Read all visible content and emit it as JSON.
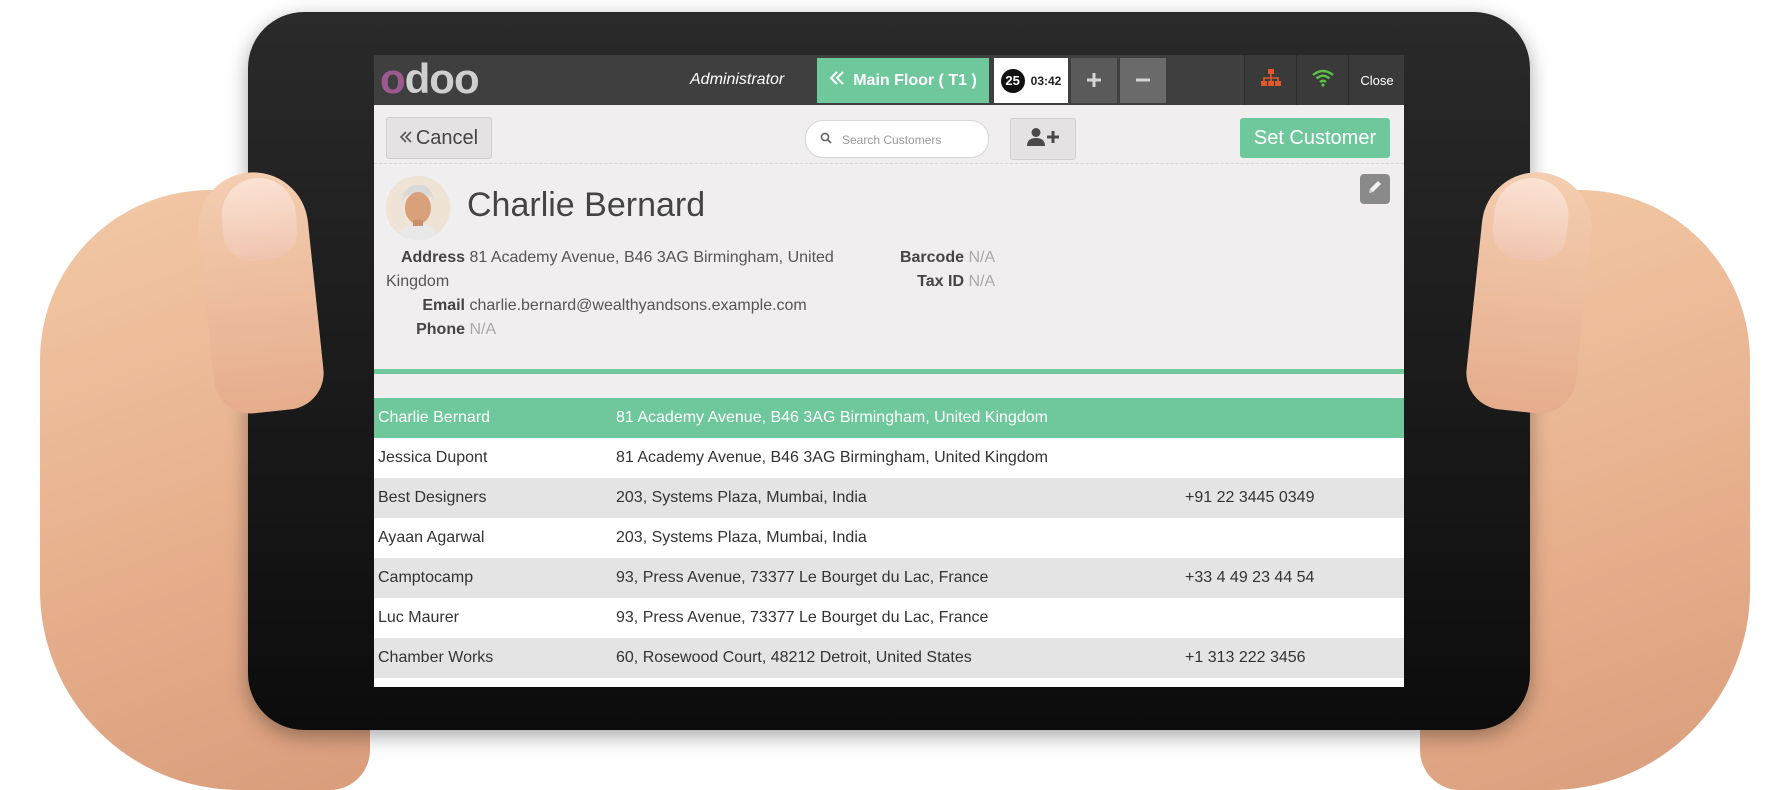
{
  "topbar": {
    "logo": "odoo",
    "user": "Administrator",
    "floor_button": "Main Floor ( T1 )",
    "order_number": "25",
    "order_time": "03:42",
    "plus_label": "+",
    "minus_label": "−",
    "close_label": "Close"
  },
  "controls": {
    "cancel_label": "Cancel",
    "search_placeholder": "Search Customers",
    "set_customer_label": "Set Customer"
  },
  "customer": {
    "name": "Charlie Bernard",
    "address_label": "Address",
    "address": "81 Academy Avenue, B46 3AG Birmingham, United Kingdom",
    "email_label": "Email",
    "email": "charlie.bernard@wealthyandsons.example.com",
    "phone_label": "Phone",
    "phone": "N/A",
    "barcode_label": "Barcode",
    "barcode": "N/A",
    "taxid_label": "Tax ID",
    "taxid": "N/A"
  },
  "customers": [
    {
      "name": "Charlie Bernard",
      "address": "81 Academy Avenue, B46 3AG Birmingham, United Kingdom",
      "phone": ""
    },
    {
      "name": "Jessica Dupont",
      "address": "81 Academy Avenue, B46 3AG Birmingham, United Kingdom",
      "phone": ""
    },
    {
      "name": "Best Designers",
      "address": "203, Systems Plaza, Mumbai, India",
      "phone": "+91 22 3445 0349"
    },
    {
      "name": "Ayaan Agarwal",
      "address": "203, Systems Plaza, Mumbai, India",
      "phone": ""
    },
    {
      "name": "Camptocamp",
      "address": "93, Press Avenue, 73377 Le Bourget du Lac, France",
      "phone": "+33 4 49 23 44 54"
    },
    {
      "name": "Luc Maurer",
      "address": "93, Press Avenue, 73377 Le Bourget du Lac, France",
      "phone": ""
    },
    {
      "name": "Chamber Works",
      "address": "60, Rosewood Court, 48212 Detroit, United States",
      "phone": "+1 313 222 3456"
    }
  ],
  "colors": {
    "accent": "#6ec89b",
    "topbar": "#3f3f3f",
    "logo_primary": "#9c5b8f",
    "network_icon": "#e2582b",
    "wifi_icon": "#5cc04a"
  },
  "icons": [
    "double-chevron-left-icon",
    "plus-icon",
    "minus-icon",
    "network-icon",
    "wifi-icon",
    "search-icon",
    "add-user-icon",
    "pencil-icon"
  ]
}
